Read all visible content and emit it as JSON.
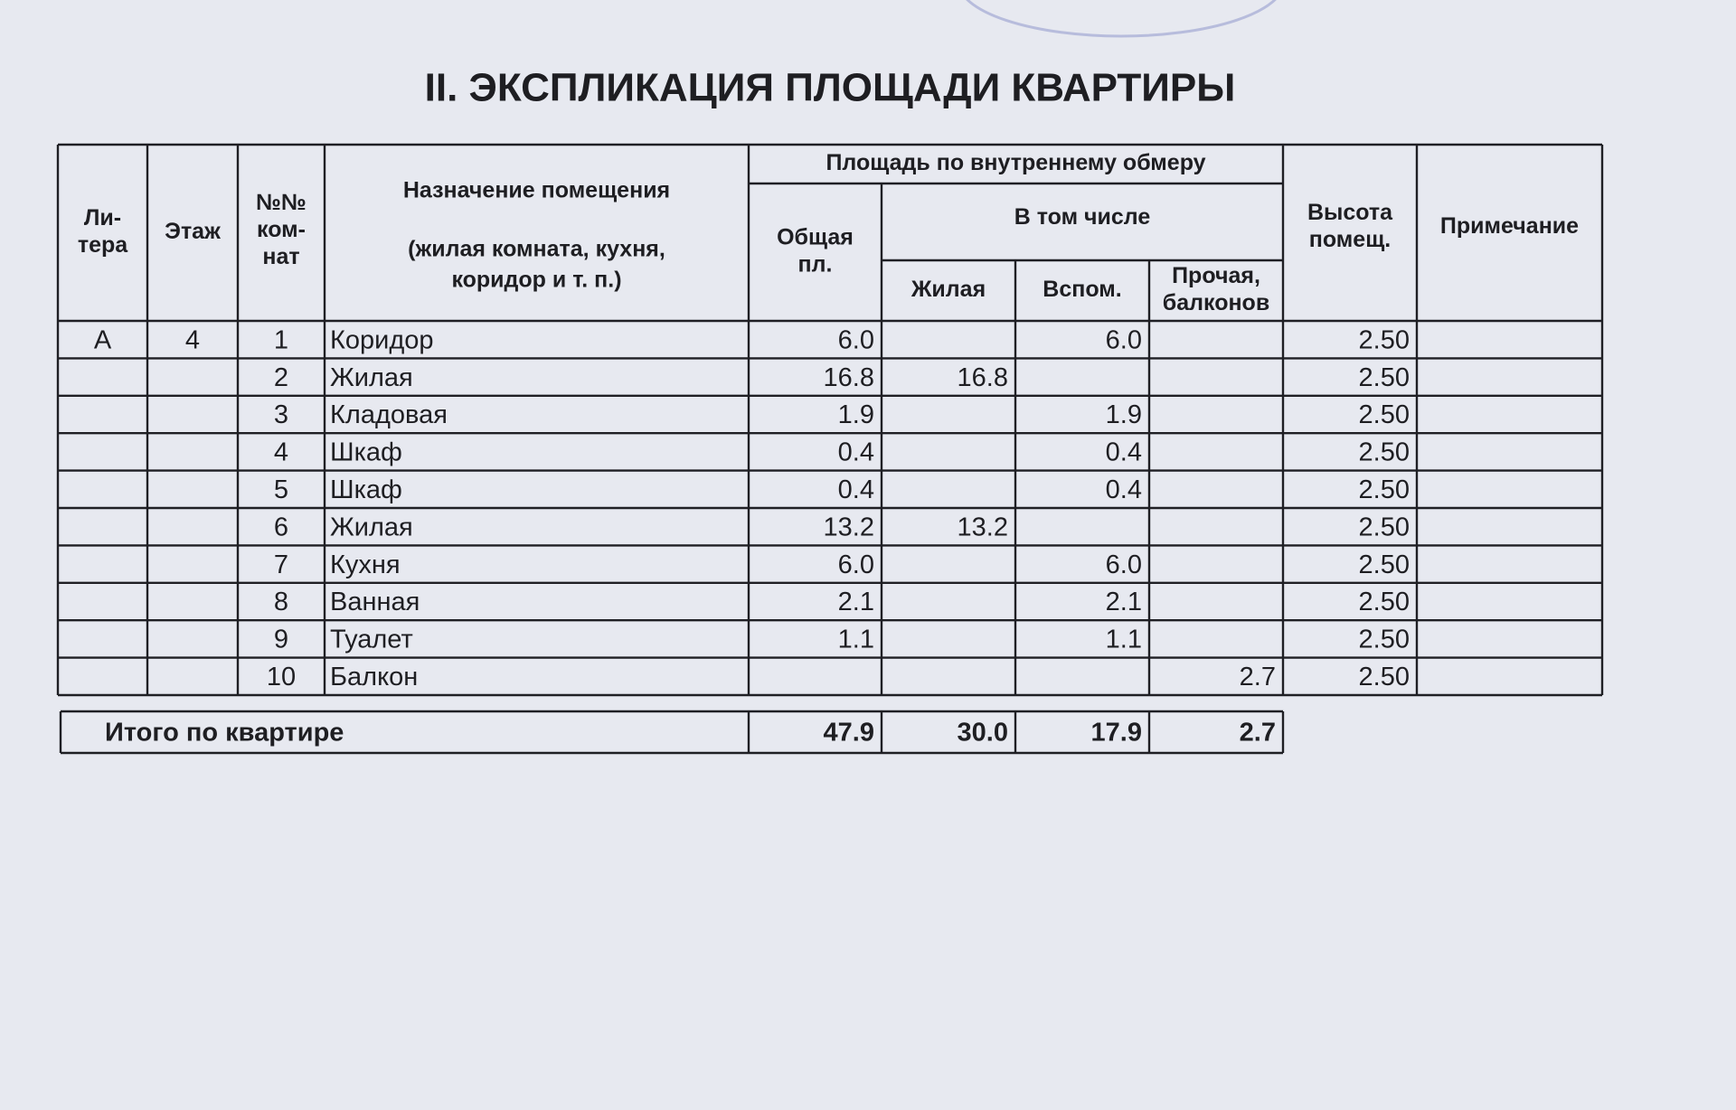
{
  "title": "II.  ЭКСПЛИКАЦИЯ ПЛОЩАДИ КВАРТИРЫ",
  "table": {
    "header": {
      "litera": [
        "Ли-",
        "тера"
      ],
      "floor": [
        "Этаж"
      ],
      "room_no": [
        "№№",
        "ком-",
        "нат"
      ],
      "purpose": [
        "Назначение помещения"
      ],
      "purpose_note": [
        "(жилая комната, кухня,",
        "коридор и т. п.)"
      ],
      "area": [
        "Площадь по внутреннему обмеру"
      ],
      "total": [
        "Общая",
        "пл."
      ],
      "including": [
        "В том числе"
      ],
      "living": [
        "Жилая"
      ],
      "auxiliary": [
        "Вспом."
      ],
      "other": [
        "Прочая,",
        "балконов"
      ],
      "height": [
        "Высота",
        "помещ."
      ],
      "note": [
        "Примечание"
      ]
    },
    "rows": [
      [
        "А",
        "4",
        "1",
        "Коридор",
        "6.0",
        null,
        "6.0",
        null,
        "2.50",
        null
      ],
      [
        null,
        null,
        "2",
        "Жилая",
        "16.8",
        "16.8",
        null,
        null,
        "2.50",
        null
      ],
      [
        null,
        null,
        "3",
        "Кладовая",
        "1.9",
        null,
        "1.9",
        null,
        "2.50",
        null
      ],
      [
        null,
        null,
        "4",
        "Шкаф",
        "0.4",
        null,
        "0.4",
        null,
        "2.50",
        null
      ],
      [
        null,
        null,
        "5",
        "Шкаф",
        "0.4",
        null,
        "0.4",
        null,
        "2.50",
        null
      ],
      [
        null,
        null,
        "6",
        "Жилая",
        "13.2",
        "13.2",
        null,
        null,
        "2.50",
        null
      ],
      [
        null,
        null,
        "7",
        "Кухня",
        "6.0",
        null,
        "6.0",
        null,
        "2.50",
        null
      ],
      [
        null,
        null,
        "8",
        "Ванная",
        "2.1",
        null,
        "2.1",
        null,
        "2.50",
        null
      ],
      [
        null,
        null,
        "9",
        "Туалет",
        "1.1",
        null,
        "1.1",
        null,
        "2.50",
        null
      ],
      [
        null,
        null,
        "10",
        "Балкон",
        null,
        null,
        null,
        "2.7",
        "2.50",
        null
      ]
    ],
    "totals": {
      "label": "Итого по квартире",
      "values": [
        "47.9",
        "30.0",
        "17.9",
        "2.7"
      ]
    }
  }
}
